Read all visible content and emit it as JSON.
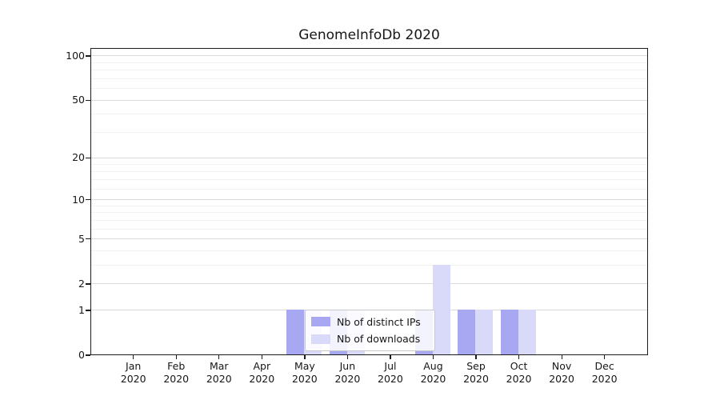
{
  "title": "GenomeInfoDb 2020",
  "chart_data": {
    "type": "bar",
    "title": "GenomeInfoDb 2020",
    "year": "2020",
    "categories": [
      "Jan",
      "Feb",
      "Mar",
      "Apr",
      "May",
      "Jun",
      "Jul",
      "Aug",
      "Sep",
      "Oct",
      "Nov",
      "Dec"
    ],
    "series": [
      {
        "name": "Nb of distinct IPs",
        "color": "#a8a8f2",
        "values": [
          0,
          0,
          0,
          0,
          1,
          1,
          0,
          1,
          1,
          1,
          0,
          0
        ]
      },
      {
        "name": "Nb of downloads",
        "color": "#d9d9fa",
        "values": [
          0,
          0,
          0,
          0,
          1,
          1,
          0,
          3,
          1,
          1,
          0,
          0
        ]
      }
    ],
    "y_axis": {
      "scale": "log10(1+v)",
      "ticks": [
        0,
        1,
        2,
        5,
        10,
        20,
        50,
        100
      ],
      "major_gridlines": [
        1,
        2,
        5,
        10,
        20,
        50,
        100
      ],
      "minor_gridlines": [
        3,
        4,
        6,
        7,
        8,
        9,
        12,
        14,
        16,
        18,
        30,
        40,
        60,
        70,
        80,
        90
      ],
      "ylim_top": 110
    },
    "legend_position": "inside-bottom-center",
    "grid": true,
    "colors": {
      "major_gridline": "#dadada",
      "minor_gridline": "#f2f2f2",
      "axis": "#1c1c1c"
    }
  }
}
